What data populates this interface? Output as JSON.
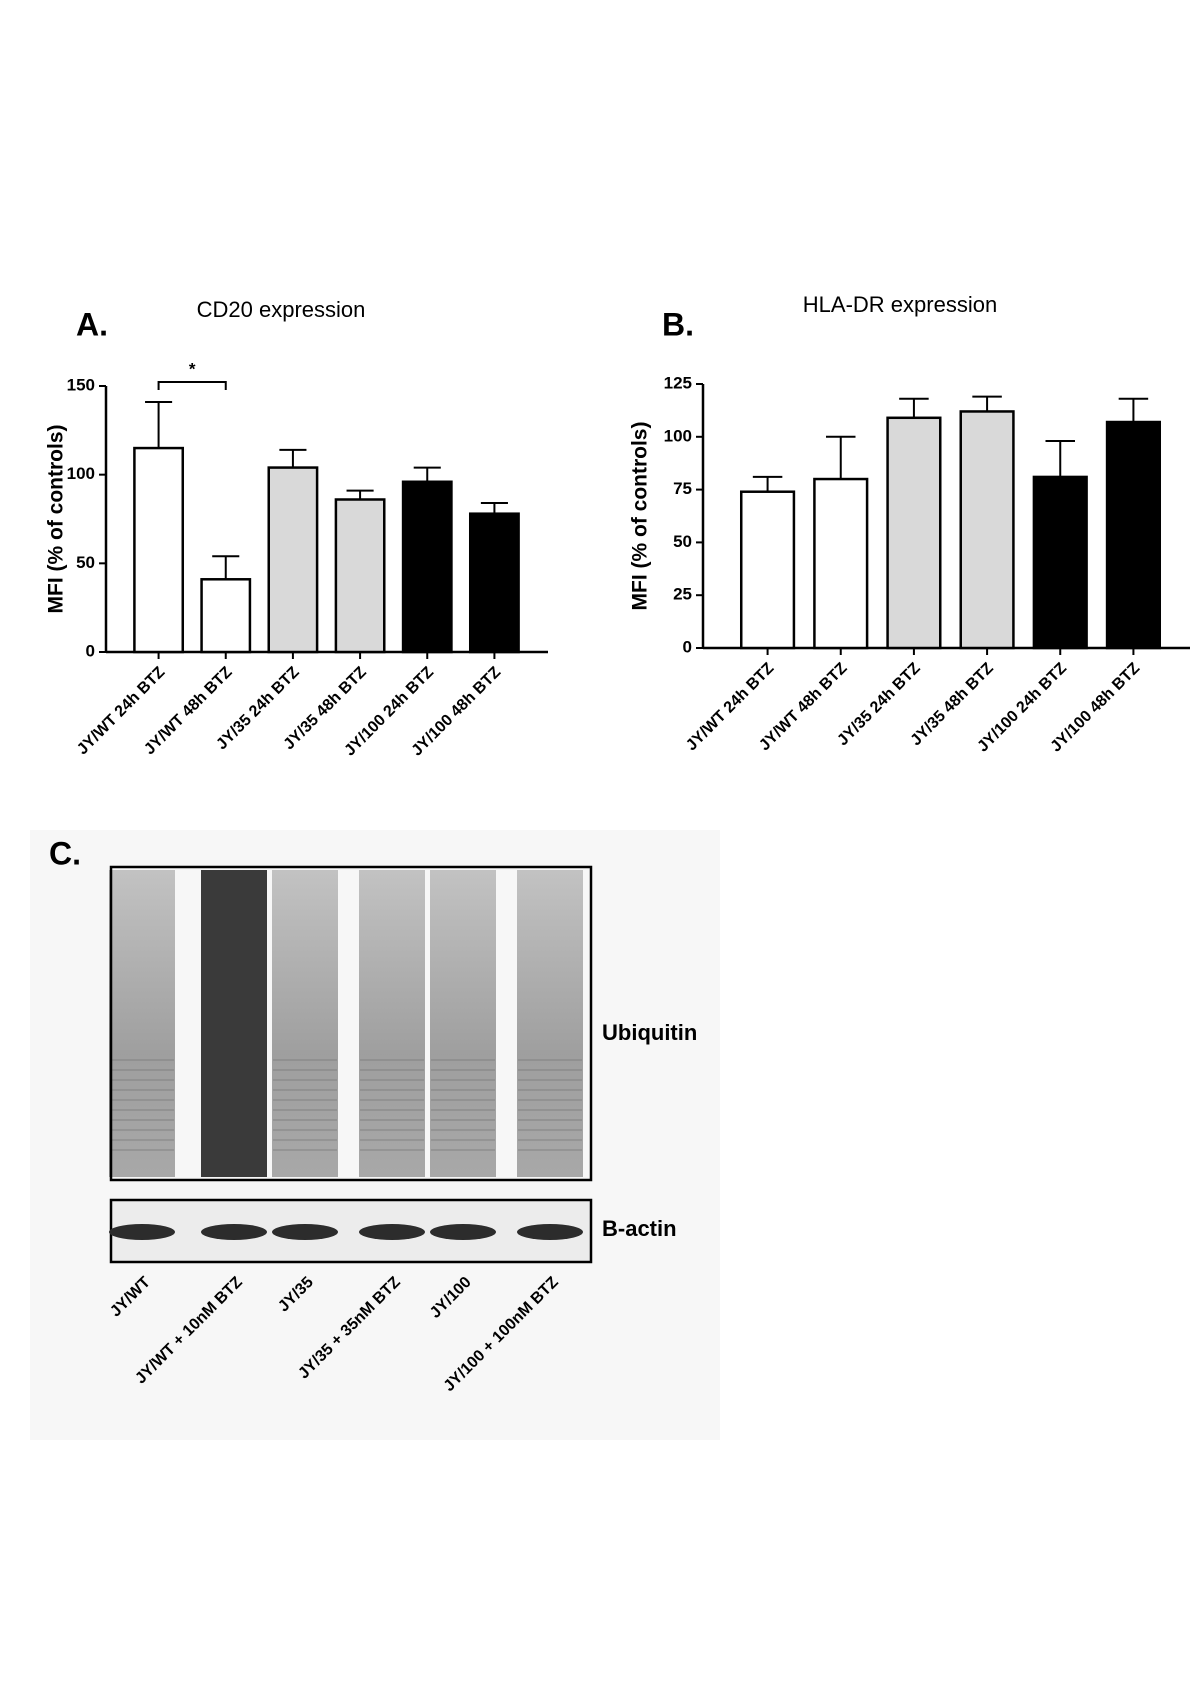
{
  "chart_data": [
    {
      "type": "bar",
      "panel": "A.",
      "title": "CD20 expression",
      "y_label": "MFI (% of controls)",
      "categories": [
        "JY/WT 24h BTZ",
        "JY/WT 48h BTZ",
        "JY/35 24h BTZ",
        "JY/35 48h BTZ",
        "JY/100 24h BTZ",
        "JY/100 48h BTZ"
      ],
      "values": [
        115,
        41,
        104,
        86,
        96,
        78
      ],
      "errors": [
        26,
        13,
        10,
        5,
        8,
        6
      ],
      "colors": [
        "#ffffff",
        "#ffffff",
        "#d9d9d9",
        "#d9d9d9",
        "#000000",
        "#000000"
      ],
      "ylim": [
        0,
        150
      ],
      "yticks": [
        0,
        50,
        100,
        150
      ],
      "significance": {
        "label": "*",
        "between": [
          "JY/WT 24h BTZ",
          "JY/WT 48h BTZ"
        ]
      }
    },
    {
      "type": "bar",
      "panel": "B.",
      "title": "HLA-DR expression",
      "y_label": "MFI (% of controls)",
      "categories": [
        "JY/WT 24h BTZ",
        "JY/WT 48h BTZ",
        "JY/35 24h BTZ",
        "JY/35 48h BTZ",
        "JY/100 24h BTZ",
        "JY/100 48h BTZ"
      ],
      "values": [
        74,
        80,
        109,
        112,
        81,
        107
      ],
      "errors": [
        7,
        20,
        9,
        7,
        17,
        11
      ],
      "colors": [
        "#ffffff",
        "#ffffff",
        "#d9d9d9",
        "#d9d9d9",
        "#000000",
        "#000000"
      ],
      "ylim": [
        0,
        125
      ],
      "yticks": [
        0,
        25,
        50,
        75,
        100,
        125
      ]
    }
  ],
  "blot": {
    "panel": "C.",
    "bands": [
      "Ubiquitin",
      "B-actin"
    ],
    "lanes": [
      "JY/WT",
      "JY/WT + 10nM BTZ",
      "JY/35",
      "JY/35 + 35nM BTZ",
      "JY/100",
      "JY/100 + 100nM BTZ"
    ]
  }
}
